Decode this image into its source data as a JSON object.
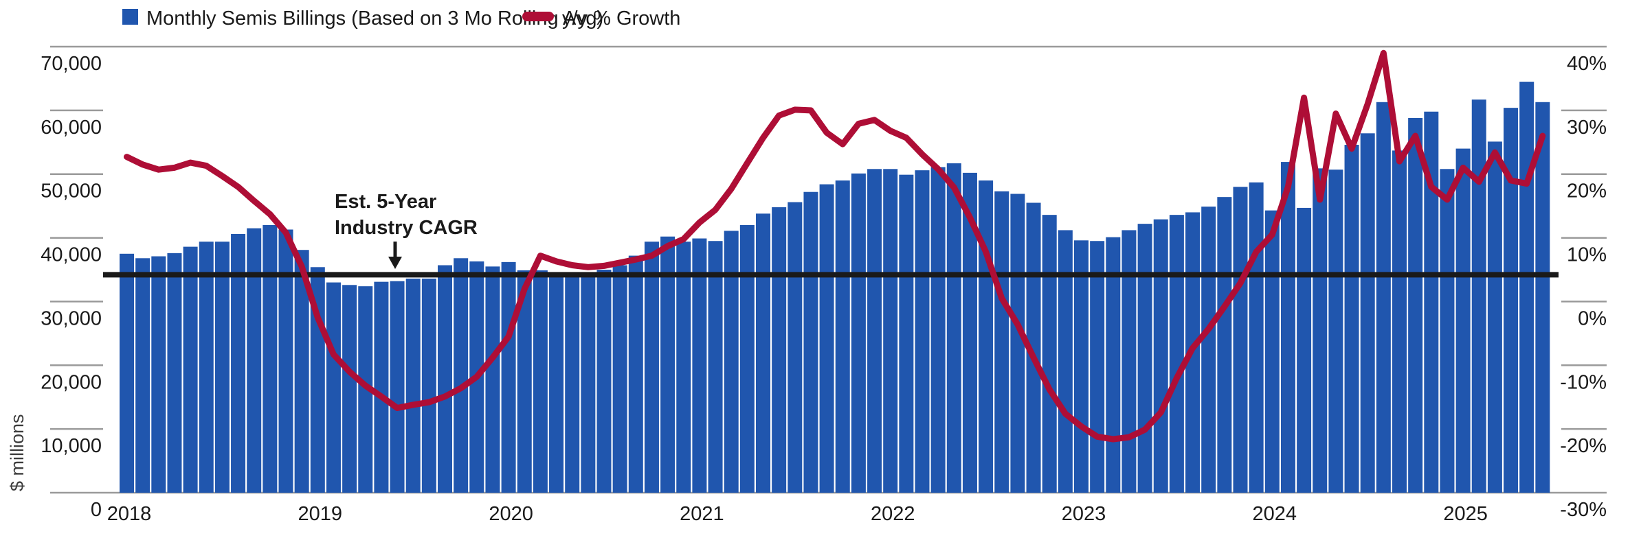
{
  "legend": {
    "bars_label_ref": "chart_data.series.0.name",
    "line_label_ref": "chart_data.series.1.name"
  },
  "annotation": {
    "line1": "Est. 5-Year",
    "line2": "Industry CAGR"
  },
  "axes": {
    "left": {
      "title": "$ millions",
      "tick_labels": [
        "70,000",
        "60,000",
        "50,000",
        "40,000",
        "30,000",
        "20,000",
        "10,000",
        "0"
      ]
    },
    "right": {
      "tick_labels": [
        "40%",
        "30%",
        "20%",
        "10%",
        "0%",
        "-10%",
        "-20%",
        "-30%"
      ]
    },
    "x": {
      "tick_labels": [
        "2018",
        "2019",
        "2020",
        "2021",
        "2022",
        "2023",
        "2024",
        "2025"
      ]
    }
  },
  "colors": {
    "bar": "#2056AE",
    "line": "#AE0E36",
    "reference_line": "#1A1A1A",
    "grid": "#9A9A9A",
    "text": "#1A1A1A"
  },
  "chart_data": {
    "type": "bar+line",
    "x_start": "2018-01",
    "x_end": "2025-06",
    "x_freq": "monthly",
    "xlabel": "",
    "ylabel": "$ millions",
    "ylim_left": [
      0,
      70000
    ],
    "ylim_right_pct": [
      -30,
      40
    ],
    "grid": "edge-lines-and-ticks-only",
    "legend_position": "top-left",
    "series": [
      {
        "name": "Monthly Semis Billings (Based on 3 Mo Rolling Avg)",
        "type": "bar",
        "axis": "left",
        "unit": "$ millions",
        "values": [
          37500,
          36800,
          37100,
          37600,
          38600,
          39400,
          39400,
          40600,
          41500,
          42000,
          41300,
          38100,
          35400,
          33000,
          32600,
          32400,
          33100,
          33200,
          33600,
          33600,
          35700,
          36800,
          36300,
          35500,
          36200,
          34900,
          34900,
          34300,
          34400,
          34600,
          35000,
          35700,
          37200,
          39400,
          40200,
          39400,
          39900,
          39500,
          41100,
          42000,
          43800,
          44800,
          45600,
          47200,
          48400,
          49000,
          50100,
          50800,
          50800,
          49900,
          50600,
          51100,
          51700,
          50200,
          49000,
          47300,
          46900,
          45500,
          43600,
          41200,
          39600,
          39500,
          40100,
          41200,
          42200,
          42900,
          43600,
          44000,
          44900,
          46400,
          48000,
          48700,
          44300,
          51900,
          44700,
          50900,
          50700,
          54600,
          56400,
          61300,
          53700,
          58800,
          59800,
          50800,
          54000,
          61700,
          55100,
          60400,
          64500,
          61300
        ]
      },
      {
        "name": "y/y % Growth",
        "type": "line",
        "axis": "right",
        "unit": "%",
        "values": [
          22.7,
          21.5,
          20.7,
          21.0,
          21.8,
          21.3,
          19.7,
          18.0,
          15.8,
          13.7,
          10.8,
          5.5,
          -2.5,
          -8.3,
          -11.0,
          -13.2,
          -14.9,
          -16.7,
          -16.2,
          -15.8,
          -14.9,
          -13.6,
          -11.8,
          -8.8,
          -5.5,
          2.0,
          7.2,
          6.3,
          5.7,
          5.4,
          5.6,
          6.1,
          6.6,
          7.2,
          8.7,
          9.8,
          12.4,
          14.4,
          17.7,
          21.7,
          25.7,
          29.2,
          30.1,
          30.0,
          26.5,
          24.7,
          27.9,
          28.5,
          26.8,
          25.7,
          23.1,
          20.8,
          17.9,
          13.2,
          7.8,
          0.5,
          -3.6,
          -8.8,
          -13.8,
          -17.6,
          -19.6,
          -21.2,
          -21.6,
          -21.3,
          -20.1,
          -17.4,
          -12.0,
          -7.3,
          -4.3,
          -0.8,
          2.9,
          7.8,
          10.5,
          18.0,
          32.0,
          16.0,
          29.5,
          24.0,
          31.0,
          39.0,
          22.0,
          26.0,
          18.0,
          16.0,
          21.0,
          18.8,
          23.4,
          19.0,
          18.5,
          26.0
        ]
      }
    ],
    "reference_line": {
      "label": "Est. 5-Year Industry CAGR",
      "approx_value_usd_m": 34200,
      "approx_value_growth_pct": 4
    }
  }
}
